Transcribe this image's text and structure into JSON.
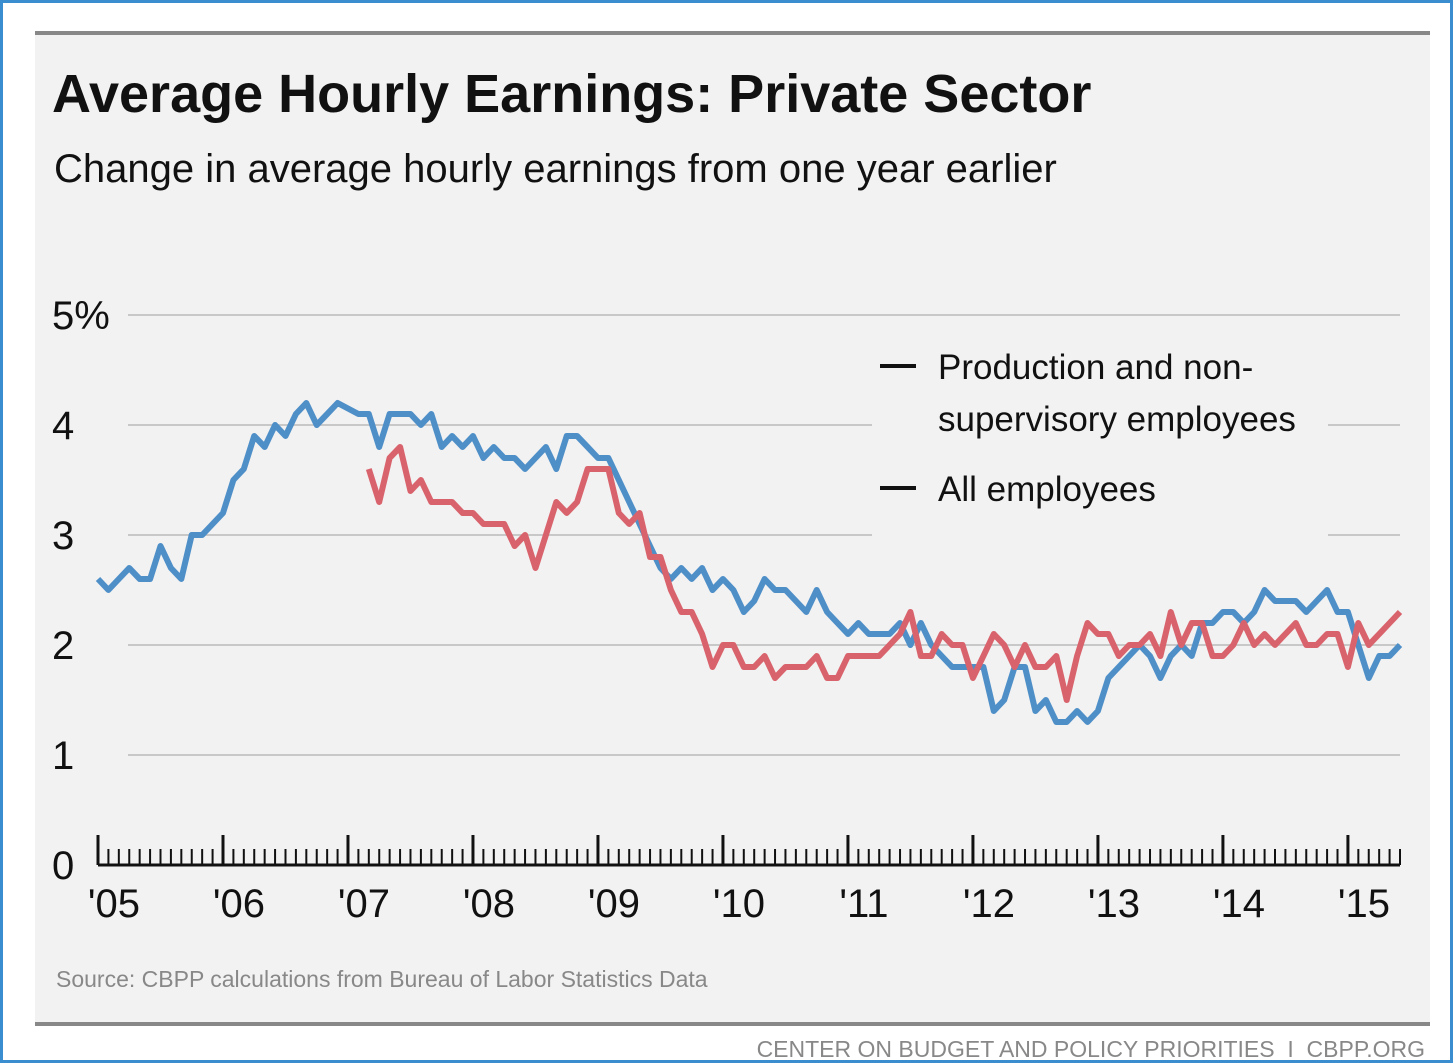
{
  "chart_data": {
    "type": "line",
    "title": "Average Hourly Earnings: Private Sector",
    "subtitle": "Change in average hourly earnings from one year earlier",
    "source": "Source: CBPP calculations from Bureau of Labor Statistics Data",
    "footer": "CENTER ON BUDGET AND POLICY PRIORITIES  I  CBPP.ORG",
    "x": [
      "2005-01",
      "2005-02",
      "2005-03",
      "2005-04",
      "2005-05",
      "2005-06",
      "2005-07",
      "2005-08",
      "2005-09",
      "2005-10",
      "2005-11",
      "2005-12",
      "2006-01",
      "2006-02",
      "2006-03",
      "2006-04",
      "2006-05",
      "2006-06",
      "2006-07",
      "2006-08",
      "2006-09",
      "2006-10",
      "2006-11",
      "2006-12",
      "2007-01",
      "2007-02",
      "2007-03",
      "2007-04",
      "2007-05",
      "2007-06",
      "2007-07",
      "2007-08",
      "2007-09",
      "2007-10",
      "2007-11",
      "2007-12",
      "2008-01",
      "2008-02",
      "2008-03",
      "2008-04",
      "2008-05",
      "2008-06",
      "2008-07",
      "2008-08",
      "2008-09",
      "2008-10",
      "2008-11",
      "2008-12",
      "2009-01",
      "2009-02",
      "2009-03",
      "2009-04",
      "2009-05",
      "2009-06",
      "2009-07",
      "2009-08",
      "2009-09",
      "2009-10",
      "2009-11",
      "2009-12",
      "2010-01",
      "2010-02",
      "2010-03",
      "2010-04",
      "2010-05",
      "2010-06",
      "2010-07",
      "2010-08",
      "2010-09",
      "2010-10",
      "2010-11",
      "2010-12",
      "2011-01",
      "2011-02",
      "2011-03",
      "2011-04",
      "2011-05",
      "2011-06",
      "2011-07",
      "2011-08",
      "2011-09",
      "2011-10",
      "2011-11",
      "2011-12",
      "2012-01",
      "2012-02",
      "2012-03",
      "2012-04",
      "2012-05",
      "2012-06",
      "2012-07",
      "2012-08",
      "2012-09",
      "2012-10",
      "2012-11",
      "2012-12",
      "2013-01",
      "2013-02",
      "2013-03",
      "2013-04",
      "2013-05",
      "2013-06",
      "2013-07",
      "2013-08",
      "2013-09",
      "2013-10",
      "2013-11",
      "2013-12",
      "2014-01",
      "2014-02",
      "2014-03",
      "2014-04",
      "2014-05",
      "2014-06",
      "2014-07",
      "2014-08",
      "2014-09",
      "2014-10",
      "2014-11",
      "2014-12",
      "2015-01",
      "2015-02",
      "2015-03",
      "2015-04",
      "2015-05",
      "2015-06"
    ],
    "series": [
      {
        "name": "Production and non-supervisory employees",
        "color": "#4f8fc8",
        "values": [
          2.6,
          2.5,
          2.6,
          2.7,
          2.6,
          2.6,
          2.9,
          2.7,
          2.6,
          3.0,
          3.0,
          3.1,
          3.2,
          3.5,
          3.6,
          3.9,
          3.8,
          4.0,
          3.9,
          4.1,
          4.2,
          4.0,
          4.1,
          4.2,
          4.15,
          4.1,
          4.1,
          3.8,
          4.1,
          4.1,
          4.1,
          4.0,
          4.1,
          3.8,
          3.9,
          3.8,
          3.9,
          3.7,
          3.8,
          3.7,
          3.7,
          3.6,
          3.7,
          3.8,
          3.6,
          3.9,
          3.9,
          3.8,
          3.7,
          3.7,
          3.5,
          3.3,
          3.1,
          2.9,
          2.7,
          2.6,
          2.7,
          2.6,
          2.7,
          2.5,
          2.6,
          2.5,
          2.3,
          2.4,
          2.6,
          2.5,
          2.5,
          2.4,
          2.3,
          2.5,
          2.3,
          2.2,
          2.1,
          2.2,
          2.1,
          2.1,
          2.1,
          2.2,
          2.0,
          2.2,
          2.0,
          1.9,
          1.8,
          1.8,
          1.8,
          1.8,
          1.4,
          1.5,
          1.8,
          1.8,
          1.4,
          1.5,
          1.3,
          1.3,
          1.4,
          1.3,
          1.4,
          1.7,
          1.8,
          1.9,
          2.0,
          1.9,
          1.7,
          1.9,
          2.0,
          1.9,
          2.2,
          2.2,
          2.3,
          2.3,
          2.2,
          2.3,
          2.5,
          2.4,
          2.4,
          2.4,
          2.3,
          2.4,
          2.5,
          2.3,
          2.3,
          2.0,
          1.7,
          1.9,
          1.9,
          2.0
        ]
      },
      {
        "name": "All employees",
        "color": "#d9636c",
        "values": [
          null,
          null,
          null,
          null,
          null,
          null,
          null,
          null,
          null,
          null,
          null,
          null,
          null,
          null,
          null,
          null,
          null,
          null,
          null,
          null,
          null,
          null,
          null,
          null,
          null,
          null,
          3.6,
          3.3,
          3.7,
          3.8,
          3.4,
          3.5,
          3.3,
          3.3,
          3.3,
          3.2,
          3.2,
          3.1,
          3.1,
          3.1,
          2.9,
          3.0,
          2.7,
          3.0,
          3.3,
          3.2,
          3.3,
          3.6,
          3.6,
          3.6,
          3.2,
          3.1,
          3.2,
          2.8,
          2.8,
          2.5,
          2.3,
          2.3,
          2.1,
          1.8,
          2.0,
          2.0,
          1.8,
          1.8,
          1.9,
          1.7,
          1.8,
          1.8,
          1.8,
          1.9,
          1.7,
          1.7,
          1.9,
          1.9,
          1.9,
          1.9,
          2.0,
          2.1,
          2.3,
          1.9,
          1.9,
          2.1,
          2.0,
          2.0,
          1.7,
          1.9,
          2.1,
          2.0,
          1.8,
          2.0,
          1.8,
          1.8,
          1.9,
          1.5,
          1.9,
          2.2,
          2.1,
          2.1,
          1.9,
          2.0,
          2.0,
          2.1,
          1.9,
          2.3,
          2.0,
          2.2,
          2.2,
          1.9,
          1.9,
          2.0,
          2.2,
          2.0,
          2.1,
          2.0,
          2.1,
          2.2,
          2.0,
          2.0,
          2.1,
          2.1,
          1.8,
          2.2,
          2.0,
          2.1,
          2.2,
          2.3
        ]
      }
    ],
    "xlim": [
      "2005-01",
      "2015-06"
    ],
    "xticks": [
      {
        "value": "2005-01",
        "label": "'05"
      },
      {
        "value": "2006-01",
        "label": "'06"
      },
      {
        "value": "2007-01",
        "label": "'07"
      },
      {
        "value": "2008-01",
        "label": "'08"
      },
      {
        "value": "2009-01",
        "label": "'09"
      },
      {
        "value": "2010-01",
        "label": "'10"
      },
      {
        "value": "2011-01",
        "label": "'11"
      },
      {
        "value": "2012-01",
        "label": "'12"
      },
      {
        "value": "2013-01",
        "label": "'13"
      },
      {
        "value": "2014-01",
        "label": "'14"
      },
      {
        "value": "2015-01",
        "label": "'15"
      }
    ],
    "ylim": [
      0,
      5
    ],
    "yticks": [
      0,
      1,
      2,
      3,
      4,
      {
        "value": 5,
        "label": "5%"
      }
    ],
    "grid": true,
    "legend": "upper right"
  }
}
